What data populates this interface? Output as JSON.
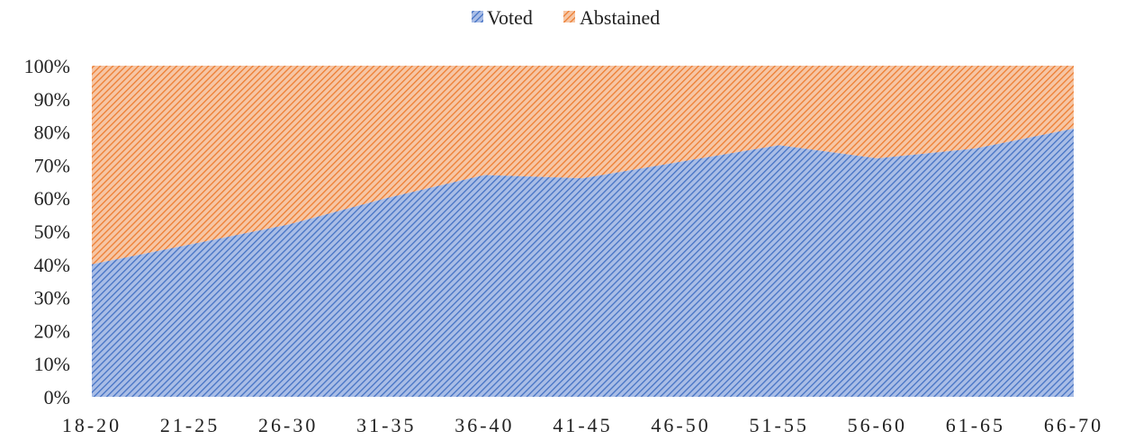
{
  "chart_data": {
    "type": "area",
    "stacked": "percent",
    "categories": [
      "18-20",
      "21-25",
      "26-30",
      "31-35",
      "36-40",
      "41-45",
      "46-50",
      "51-55",
      "56-60",
      "61-65",
      "66-70"
    ],
    "series": [
      {
        "name": "Voted",
        "values": [
          40,
          46,
          52,
          60,
          67,
          66,
          71,
          76,
          72,
          75,
          81
        ],
        "color": "#4472C4",
        "pattern": "diagonal-hatch"
      },
      {
        "name": "Abstained",
        "values": [
          60,
          54,
          48,
          40,
          33,
          34,
          29,
          24,
          28,
          25,
          19
        ],
        "color": "#ED7D31",
        "pattern": "diagonal-hatch"
      }
    ],
    "yticks": [
      "0%",
      "10%",
      "20%",
      "30%",
      "40%",
      "50%",
      "60%",
      "70%",
      "80%",
      "90%",
      "100%"
    ],
    "ylim": [
      0,
      100
    ],
    "title": "",
    "xlabel": "",
    "ylabel": "",
    "legend": "top",
    "grid": false
  }
}
